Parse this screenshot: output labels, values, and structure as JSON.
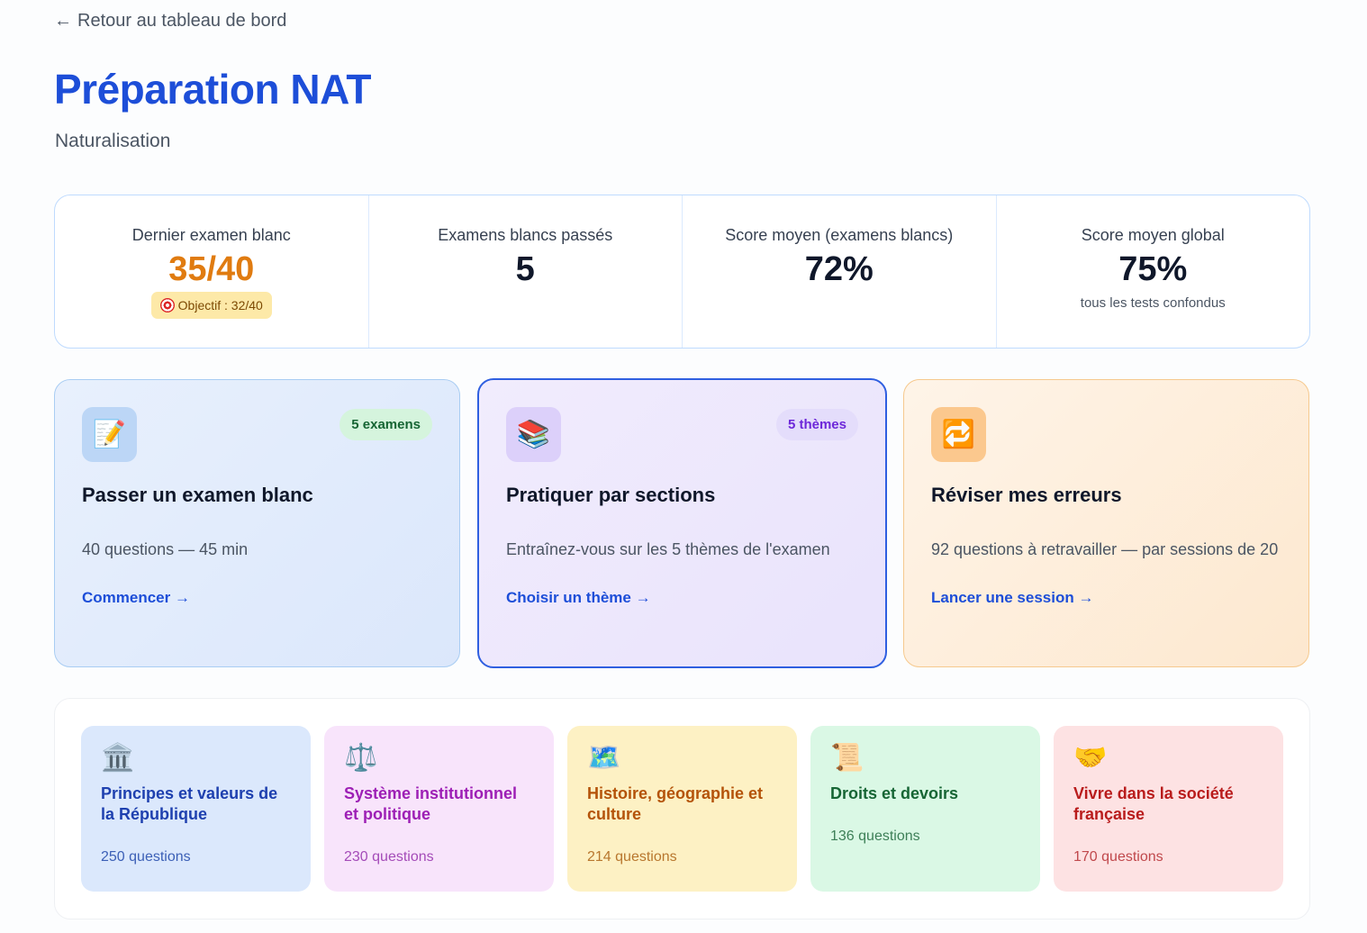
{
  "nav": {
    "back_label": "Retour au tableau de bord"
  },
  "header": {
    "title": "Préparation NAT",
    "subtitle": "Naturalisation"
  },
  "stats": [
    {
      "label": "Dernier examen blanc",
      "value": "35/40",
      "badge": "Objectif : 32/40",
      "value_color": "#e07b10"
    },
    {
      "label": "Examens blancs passés",
      "value": "5"
    },
    {
      "label": "Score moyen (examens blancs)",
      "value": "72%"
    },
    {
      "label": "Score moyen global",
      "value": "75%",
      "note": "tous les tests confondus"
    }
  ],
  "cards": [
    {
      "icon": "memo-icon",
      "badge": "5 examens",
      "title": "Passer un examen blanc",
      "description": "40 questions — 45 min",
      "link": "Commencer →"
    },
    {
      "icon": "books-icon",
      "badge": "5 thèmes",
      "title": "Pratiquer par sections",
      "description": "Entraînez-vous sur les 5 thèmes de l'examen",
      "link": "Choisir un thème →"
    },
    {
      "icon": "repeat-icon",
      "title": "Réviser mes erreurs",
      "description": "92 questions à retravailler — par sessions de 20",
      "link": "Lancer une session →"
    }
  ],
  "themes": [
    {
      "icon": "classical-building-icon",
      "title": "Principes et valeurs de la République",
      "count": "250 questions"
    },
    {
      "icon": "balance-scale-icon",
      "title": "Système institutionnel et politique",
      "count": "230 questions"
    },
    {
      "icon": "world-map-icon",
      "title": "Histoire, géographie et culture",
      "count": "214 questions"
    },
    {
      "icon": "scroll-icon",
      "title": "Droits et devoirs",
      "count": "136 questions"
    },
    {
      "icon": "handshake-icon",
      "title": "Vivre dans la société française",
      "count": "170 questions"
    }
  ],
  "colors": {
    "accent": "#1d4ed8",
    "highlight": "#e07b10"
  }
}
